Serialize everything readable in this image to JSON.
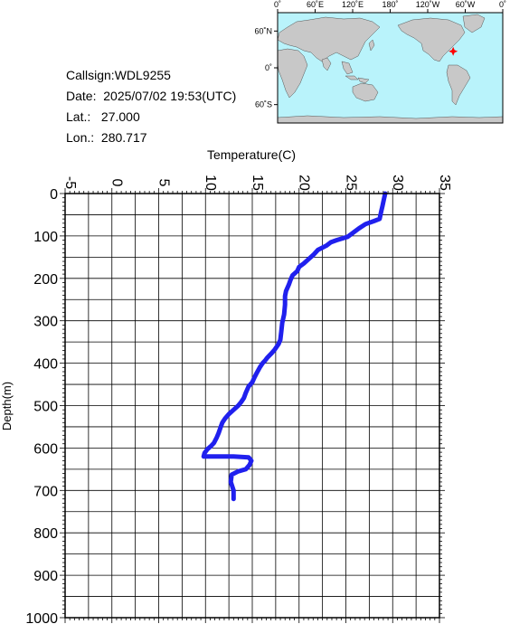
{
  "station": {
    "callsign_line": "Callsign:WDL9255",
    "date_line": "Date:  2025/07/02 19:53(UTC)",
    "lat_line": "Lat.:   27.000",
    "lon_line": "Lon.:  280.717"
  },
  "map": {
    "lon_labels": [
      "0˚",
      "60˚E",
      "120˚E",
      "180˚",
      "120˚W",
      "60˚W",
      "0˚"
    ],
    "lat_labels": [
      "60˚N",
      "0˚",
      "60˚S"
    ],
    "marker": {
      "lat": 27.0,
      "lon": 280.717
    },
    "ocean_color": "#b9f3fb",
    "land_color": "#c8c8c8",
    "marker_color": "#ff0000"
  },
  "chart_data": {
    "type": "line",
    "title": "",
    "xlabel": "Temperature(C)",
    "ylabel": "Depth(m)",
    "xlim": [
      -5,
      35
    ],
    "ylim": [
      1000,
      0
    ],
    "x_ticks": [
      "-5",
      "0",
      "5",
      "10",
      "15",
      "20",
      "25",
      "30",
      "35"
    ],
    "y_ticks": [
      "0",
      "100",
      "200",
      "300",
      "400",
      "500",
      "600",
      "700",
      "800",
      "900",
      "1000"
    ],
    "grid": true,
    "line_color": "#2020ee",
    "series": [
      {
        "points": [
          [
            29.2,
            0
          ],
          [
            29.1,
            10
          ],
          [
            29.0,
            20
          ],
          [
            28.9,
            30
          ],
          [
            28.8,
            40
          ],
          [
            28.6,
            60
          ],
          [
            28.0,
            65
          ],
          [
            27.1,
            72
          ],
          [
            26.4,
            82
          ],
          [
            25.8,
            92
          ],
          [
            25.2,
            102
          ],
          [
            24.0,
            110
          ],
          [
            23.4,
            115
          ],
          [
            22.9,
            123
          ],
          [
            22.0,
            133
          ],
          [
            21.6,
            143
          ],
          [
            21.0,
            155
          ],
          [
            20.5,
            165
          ],
          [
            20.0,
            173
          ],
          [
            19.8,
            183
          ],
          [
            19.3,
            193
          ],
          [
            19.1,
            203
          ],
          [
            18.9,
            215
          ],
          [
            18.6,
            230
          ],
          [
            18.5,
            242
          ],
          [
            18.5,
            262
          ],
          [
            18.4,
            285
          ],
          [
            18.2,
            305
          ],
          [
            18.1,
            325
          ],
          [
            18.0,
            345
          ],
          [
            17.8,
            355
          ],
          [
            17.4,
            368
          ],
          [
            17.0,
            378
          ],
          [
            16.6,
            387
          ],
          [
            16.4,
            393
          ],
          [
            16.1,
            400
          ],
          [
            15.8,
            410
          ],
          [
            15.5,
            422
          ],
          [
            15.2,
            435
          ],
          [
            15.0,
            445
          ],
          [
            14.6,
            455
          ],
          [
            14.3,
            470
          ],
          [
            14.1,
            482
          ],
          [
            13.8,
            492
          ],
          [
            13.5,
            500
          ],
          [
            13.0,
            510
          ],
          [
            12.5,
            520
          ],
          [
            12.1,
            530
          ],
          [
            11.8,
            540
          ],
          [
            11.6,
            552
          ],
          [
            11.4,
            565
          ],
          [
            11.2,
            575
          ],
          [
            10.9,
            588
          ],
          [
            10.6,
            595
          ],
          [
            10.2,
            603
          ],
          [
            9.9,
            612
          ],
          [
            9.8,
            620
          ],
          [
            13.0,
            620
          ],
          [
            14.6,
            622
          ],
          [
            14.9,
            630
          ],
          [
            14.7,
            640
          ],
          [
            14.3,
            650
          ],
          [
            13.5,
            655
          ],
          [
            12.8,
            663
          ],
          [
            12.7,
            680
          ],
          [
            13.0,
            700
          ],
          [
            13.0,
            720
          ]
        ]
      }
    ]
  }
}
